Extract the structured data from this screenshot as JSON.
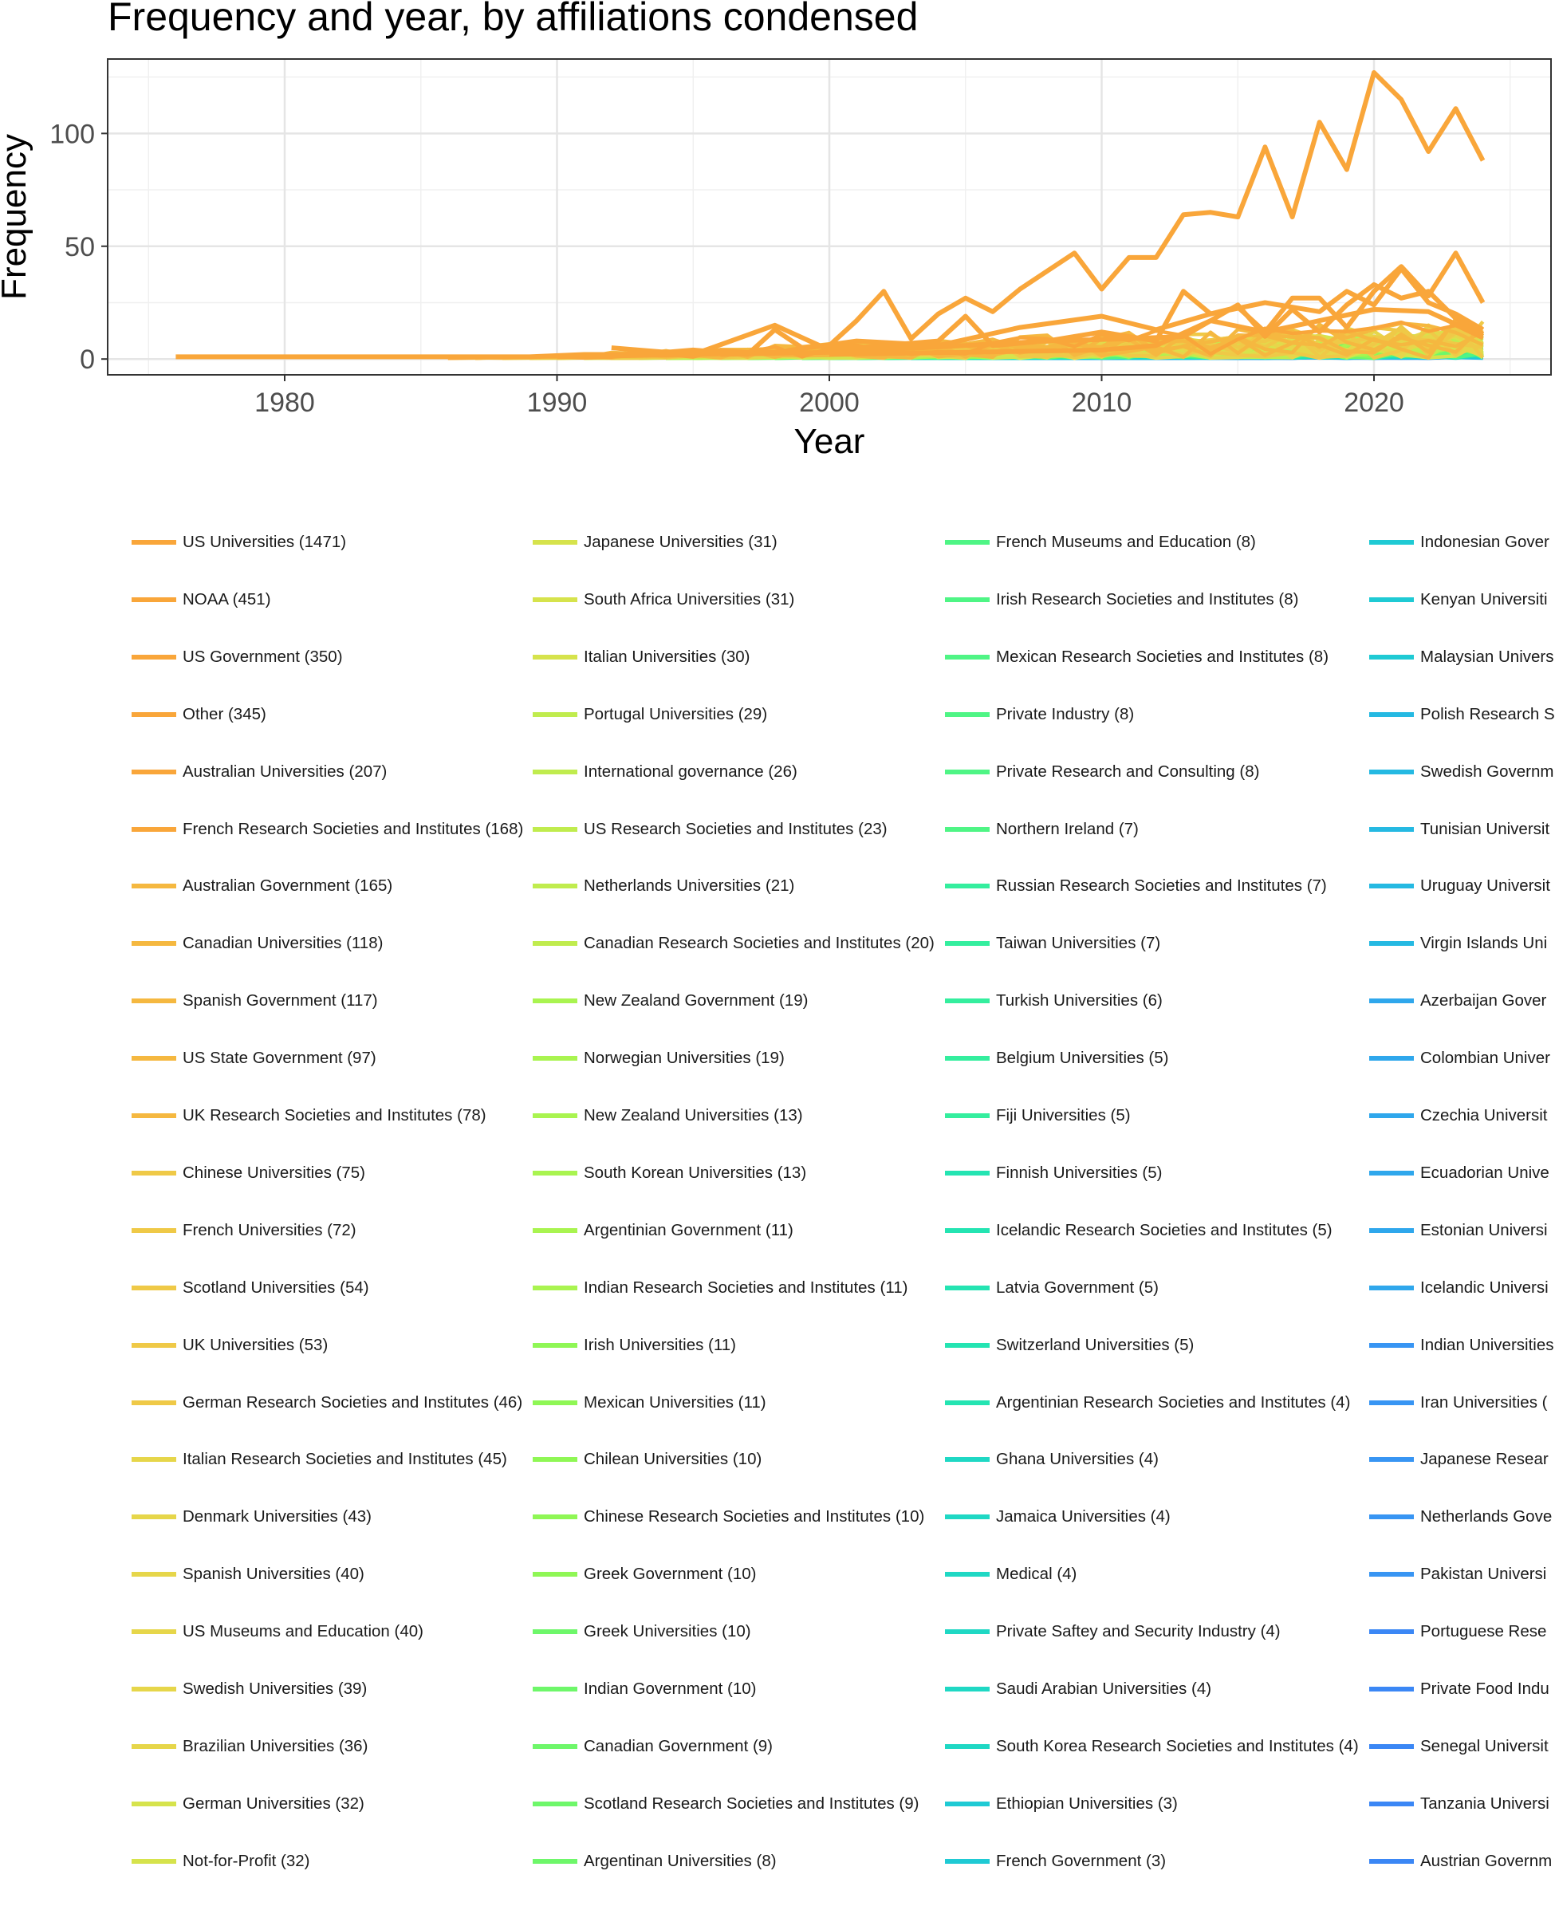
{
  "chart_data": {
    "type": "line",
    "title": "Frequency and year, by affiliations condensed",
    "xlabel": "Year",
    "ylabel": "Frequency",
    "xlim": [
      1973.5,
      2026.5
    ],
    "ylim": [
      -7,
      133
    ],
    "xticks": [
      1980,
      1990,
      2000,
      2010,
      2020
    ],
    "yticks": [
      0,
      50,
      100
    ],
    "grid": true,
    "legend_position": "bottom",
    "colors": {
      "primary_series": "#f9a63a",
      "palette": [
        "#f9a63a",
        "#f5b840",
        "#efc947",
        "#e6d64a",
        "#d6e34c",
        "#c0ec4e",
        "#a9f450",
        "#8ff755",
        "#6ef76a",
        "#4ff585",
        "#34ee9e",
        "#24e4b2",
        "#1fd8c4",
        "#1fcad4",
        "#25b9e2",
        "#2fa7ec",
        "#3895f3",
        "#3b87f5"
      ]
    },
    "series": [
      {
        "name": "US Universities (1471)",
        "x": [
          1976,
          1980,
          1985,
          1989,
          1991,
          1992,
          1993,
          1994,
          1995,
          1996,
          1997,
          1998,
          1999,
          2000,
          2001,
          2002,
          2003,
          2004,
          2005,
          2006,
          2007,
          2008,
          2009,
          2010,
          2011,
          2012,
          2013,
          2014,
          2015,
          2016,
          2017,
          2018,
          2019,
          2020,
          2021,
          2022,
          2023,
          2024
        ],
        "values": [
          1,
          1,
          1,
          1,
          2,
          2,
          2,
          3,
          4,
          3,
          2,
          13,
          5,
          6,
          17,
          30,
          9,
          20,
          27,
          21,
          31,
          39,
          47,
          31,
          45,
          45,
          64,
          65,
          63,
          94,
          63,
          105,
          84,
          127,
          115,
          92,
          111,
          88
        ]
      },
      {
        "name": "NOAA (451)",
        "x": [
          1990,
          1995,
          1998,
          2000,
          2002,
          2004,
          2005,
          2006,
          2008,
          2010,
          2012,
          2013,
          2014,
          2015,
          2016,
          2017,
          2018,
          2019,
          2020,
          2021,
          2022,
          2023,
          2024
        ],
        "values": [
          1,
          2,
          15,
          4,
          6,
          8,
          19,
          6,
          8,
          12,
          8,
          30,
          20,
          23,
          12,
          27,
          27,
          14,
          30,
          41,
          28,
          47,
          25
        ]
      },
      {
        "name": "US Government (350)",
        "x": [
          1992,
          1995,
          1998,
          2001,
          2004,
          2007,
          2010,
          2012,
          2014,
          2016,
          2018,
          2019,
          2020,
          2021,
          2022,
          2023,
          2024
        ],
        "values": [
          5,
          2,
          3,
          8,
          6,
          14,
          19,
          13,
          20,
          25,
          21,
          30,
          24,
          40,
          25,
          20,
          13
        ]
      },
      {
        "name": "Other (345)",
        "x": [
          1996,
          2000,
          2005,
          2008,
          2011,
          2013,
          2015,
          2016,
          2017,
          2018,
          2019,
          2020,
          2021,
          2022,
          2023,
          2024
        ],
        "values": [
          2,
          3,
          6,
          8,
          9,
          10,
          24,
          10,
          22,
          12,
          24,
          33,
          27,
          30,
          18,
          11
        ]
      },
      {
        "name": "Australian Universities (207)",
        "x": [
          2000,
          2005,
          2010,
          2012,
          2014,
          2016,
          2018,
          2020,
          2022,
          2024
        ],
        "values": [
          2,
          3,
          4,
          6,
          17,
          12,
          17,
          22,
          21,
          10
        ]
      }
    ],
    "legend": [
      "US Universities (1471)",
      "NOAA (451)",
      "US Government (350)",
      "Other (345)",
      "Australian Universities (207)",
      "French Research Societies and Institutes (168)",
      "Australian Government (165)",
      "Canadian Universities (118)",
      "Spanish Government (117)",
      "US State Government (97)",
      "UK Research Societies and Institutes (78)",
      "Chinese Universities (75)",
      "French Universities (72)",
      "Scotland Universities (54)",
      "UK Universities (53)",
      "German Research Societies and Institutes (46)",
      "Italian Research Societies and Institutes (45)",
      "Denmark Universities (43)",
      "Spanish Universities (40)",
      "US Museums and Education (40)",
      "Swedish Universities (39)",
      "Brazilian Universities (36)",
      "German Universities (32)",
      "Not-for-Profit (32)",
      "Japanese Universities (31)",
      "South Africa Universities (31)",
      "Italian Universities (30)",
      "Portugal Universities (29)",
      "International governance (26)",
      "US Research Societies and Institutes (23)",
      "Netherlands Universities (21)",
      "Canadian Research Societies and Institutes (20)",
      "New Zealand Government (19)",
      "Norwegian Universities (19)",
      "New Zealand Universities (13)",
      "South Korean Universities (13)",
      "Argentinian Government (11)",
      "Indian Research Societies and Institutes (11)",
      "Irish Universities (11)",
      "Mexican Universities (11)",
      "Chilean Universities (10)",
      "Chinese Research Societies and Institutes (10)",
      "Greek Government (10)",
      "Greek Universities (10)",
      "Indian Government (10)",
      "Canadian Government (9)",
      "Scotland Research Societies and Institutes (9)",
      "Argentinan Universities (8)",
      "French Museums and Education (8)",
      "Irish Research Societies and Institutes (8)",
      "Mexican Research Societies and Institutes (8)",
      "Private Industry (8)",
      "Private Research and Consulting (8)",
      "Northern Ireland (7)",
      "Russian Research Societies and Institutes (7)",
      "Taiwan Universities (7)",
      "Turkish Universities (6)",
      "Belgium Universities (5)",
      "Fiji Universities (5)",
      "Finnish Universities (5)",
      "Icelandic Research Societies and Institutes (5)",
      "Latvia Government (5)",
      "Switzerland Universities (5)",
      "Argentinian Research Societies and Institutes (4)",
      "Ghana Universities (4)",
      "Jamaica Universities (4)",
      "Medical (4)",
      "Private Saftey and Security Industry (4)",
      "Saudi Arabian Universities (4)",
      "South Korea Research Societies and Institutes (4)",
      "Ethiopian Universities (3)",
      "French Government (3)",
      "Indonesian Gover",
      "Kenyan Universiti",
      "Malaysian Univers",
      "Polish Research S",
      "Swedish Governm",
      "Tunisian Universit",
      "Uruguay Universit",
      "Virgin Islands Uni",
      "Azerbaijan Gover",
      "Colombian Univer",
      "Czechia Universit",
      "Ecuadorian Unive",
      "Estonian Universi",
      "Icelandic Universi",
      "Indian Universities",
      "Iran Universities (",
      "Japanese Resear",
      "Netherlands Gove",
      "Pakistan Universi",
      "Portuguese Rese",
      "Private Food Indu",
      "Senegal Universit",
      "Tanzania Universi",
      "Austrian Governm"
    ]
  }
}
